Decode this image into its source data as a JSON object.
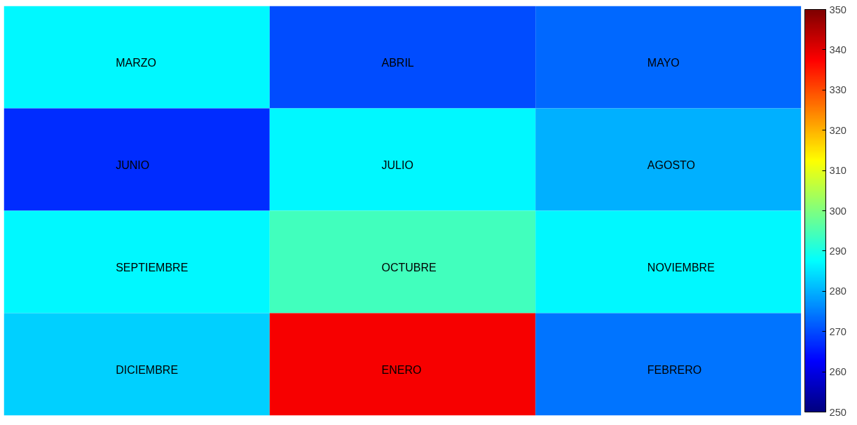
{
  "chart_data": {
    "type": "heatmap",
    "categories": [
      null,
      null,
      null
    ],
    "y_categories": [
      null,
      null,
      null,
      null
    ],
    "cells": [
      [
        287,
        270,
        273
      ],
      [
        267,
        287,
        280
      ],
      [
        287,
        294,
        287
      ],
      [
        283,
        338,
        274
      ]
    ],
    "cell_labels": [
      [
        "MARZO",
        "ABRIL",
        "MAYO"
      ],
      [
        "JUNIO",
        "JULIO",
        "AGOSTO"
      ],
      [
        "SEPTIEMBRE",
        "OCTUBRE",
        "NOVIEMBRE"
      ],
      [
        "DICIEMBRE",
        "ENERO",
        "FEBRERO"
      ]
    ],
    "clim": [
      250,
      350
    ],
    "cticks": [
      250,
      260,
      270,
      280,
      290,
      300,
      310,
      320,
      330,
      340,
      350
    ]
  }
}
